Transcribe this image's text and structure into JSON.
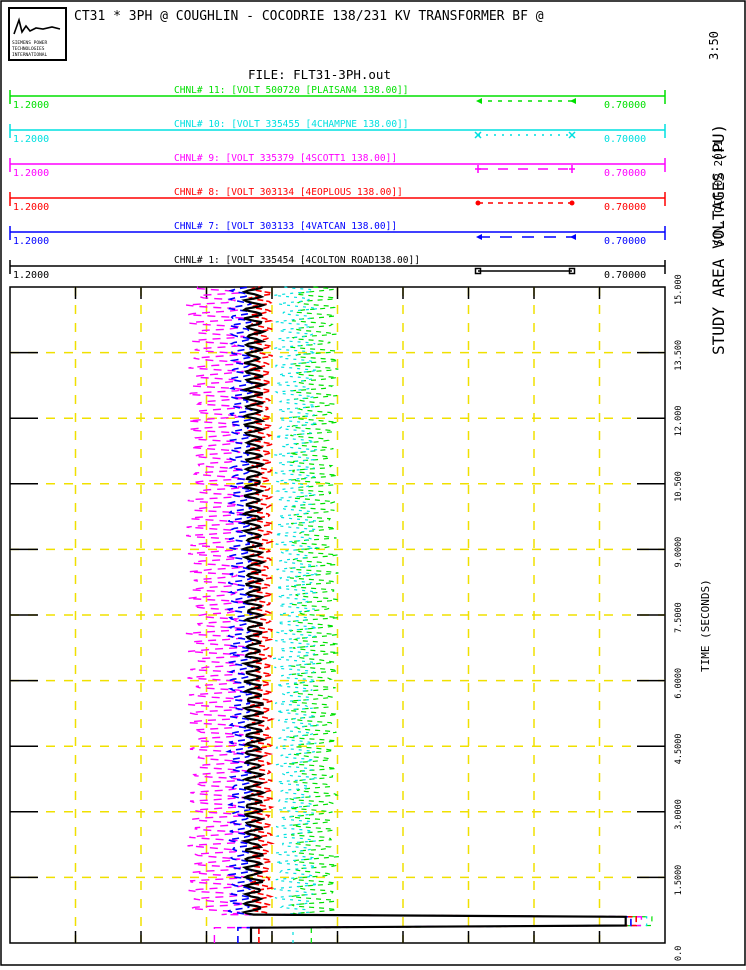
{
  "header": {
    "logo_lines": [
      "SIEMENS POWER",
      "TECHNOLOGIES",
      "INTERNATIONAL"
    ],
    "title": "CT31 * 3PH @ COUGHLIN - COCODRIE 138/231 KV TRANSFORMER BF @",
    "file": "FILE: FLT31-3PH.out"
  },
  "side": {
    "time": "3:50",
    "date": "SUN, OCT 02 2011",
    "plot_title": "STUDY AREA VOLTAGES (PU)",
    "xlabel": "TIME (SECONDS)"
  },
  "chart_data": {
    "type": "line",
    "title": "STUDY AREA VOLTAGES (PU)",
    "xlabel": "TIME (SECONDS)",
    "xlim": [
      0.0,
      15.0
    ],
    "x_ticks": [
      "0.0",
      "1.5000",
      "3.0000",
      "4.5000",
      "6.0000",
      "7.5000",
      "9.0000",
      "10.500",
      "12.000",
      "13.500",
      "15.000"
    ],
    "ylim": [
      0.7,
      1.2
    ],
    "grid": true,
    "series": [
      {
        "channel": "CHNL# 11:",
        "name": "[VOLT 500720 [PLAISAN4    138.00]]",
        "color": "#00e000",
        "ymax": "1.2000",
        "ymin": "0.70000",
        "marker": "arrow-dash"
      },
      {
        "channel": "CHNL# 10:",
        "name": "[VOLT 335455 [4CHAMPNE     138.00]]",
        "color": "#00e0e0",
        "ymax": "1.2000",
        "ymin": "0.70000",
        "marker": "x-dot"
      },
      {
        "channel": "CHNL# 9:",
        "name": "[VOLT 335379 [4SCOTT1      138.00]]",
        "color": "#ff00ff",
        "ymax": "1.2000",
        "ymin": "0.70000",
        "marker": "plus-dash"
      },
      {
        "channel": "CHNL# 8:",
        "name": "[VOLT 303134 [4EOPLOUS     138.00]]",
        "color": "#ff0000",
        "ymax": "1.2000",
        "ymin": "0.70000",
        "marker": "dot-dash"
      },
      {
        "channel": "CHNL# 7:",
        "name": "[VOLT 303133 [4VATCAN      138.00]]",
        "color": "#0000ff",
        "ymax": "1.2000",
        "ymin": "0.70000",
        "marker": "arrow-longdash"
      },
      {
        "channel": "CHNL# 1:",
        "name": "[VOLT 335454 [4COLTON ROAD138.00]]",
        "color": "#000000",
        "ymax": "1.2000",
        "ymin": "0.70000",
        "marker": "square-solid"
      }
    ]
  }
}
